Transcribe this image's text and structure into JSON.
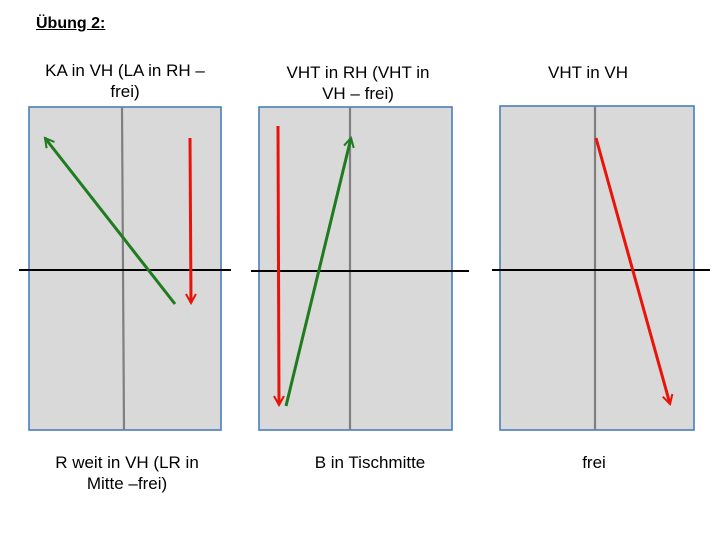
{
  "slide_title": "Übung 2:",
  "panels": [
    {
      "top_label_lines": [
        "KA in VH (LA in RH –",
        "frei)"
      ],
      "bottom_label_lines": [
        "R weit in VH (LR in",
        "Mitte –frei)"
      ],
      "arrows": [
        "green",
        "red"
      ]
    },
    {
      "top_label_lines": [
        "VHT in RH (VHT in",
        "VH – frei)"
      ],
      "bottom_label_lines": [
        "B in Tischmitte"
      ],
      "arrows": [
        "red",
        "green"
      ]
    },
    {
      "top_label_lines": [
        "VHT in VH"
      ],
      "bottom_label_lines": [
        "frei"
      ],
      "arrows": [
        "red"
      ]
    }
  ],
  "colors": {
    "table_fill": "#d9d9d9",
    "table_border": "#4a7ebb",
    "center_line": "#7f7f7f",
    "net_line": "#000000",
    "green_arrow": "#1e7b1e",
    "red_arrow": "#e8140a"
  }
}
